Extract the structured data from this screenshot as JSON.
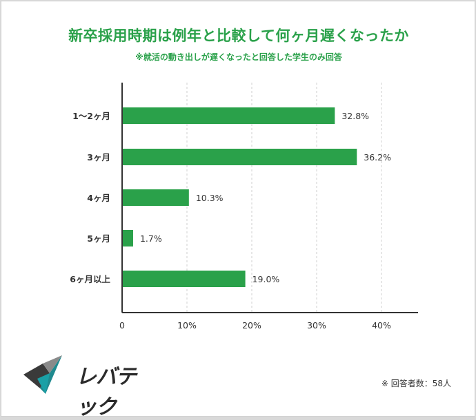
{
  "header": {
    "title": "新卒採用時期は例年と比較して何ヶ月遅くなったか",
    "subtitle": "※就活の動き出しが遅くなったと回答した学生のみ回答"
  },
  "chart_data": {
    "type": "bar",
    "orientation": "horizontal",
    "categories": [
      "1〜2ヶ月",
      "3ヶ月",
      "4ヶ月",
      "5ヶ月",
      "6ヶ月以上"
    ],
    "values": [
      32.8,
      36.2,
      10.3,
      1.7,
      19.0
    ],
    "value_labels": [
      "32.8%",
      "36.2%",
      "10.3%",
      "1.7%",
      "19.0%"
    ],
    "x_ticks": [
      "0",
      "10%",
      "20%",
      "30%",
      "40%"
    ],
    "xlim": [
      0,
      46
    ],
    "grid": "vertical-dashed",
    "bar_color": "#2aa14a",
    "xlabel": "",
    "ylabel": ""
  },
  "footer": {
    "brand": "レバテック",
    "note": "※ 回答者数：58人"
  }
}
